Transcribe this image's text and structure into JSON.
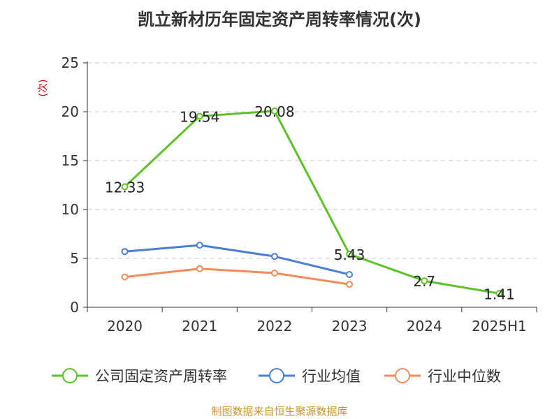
{
  "chart_data": {
    "type": "line",
    "title": "凯立新材历年固定资产周转率情况(次)",
    "ylabel": "(次)",
    "xlabel": "",
    "categories": [
      "2020",
      "2021",
      "2022",
      "2023",
      "2024",
      "2025H1"
    ],
    "ylim": [
      0,
      25
    ],
    "yticks": [
      0,
      5,
      10,
      15,
      20,
      25
    ],
    "grid": true,
    "legend_position": "bottom",
    "series": [
      {
        "name": "公司固定资产周转率",
        "values": [
          12.33,
          19.54,
          20.08,
          5.43,
          2.7,
          1.41
        ],
        "labels": [
          "12.33",
          "19.54",
          "20.08",
          "5.43",
          "2.7",
          "1.41"
        ],
        "color": "#5cc327"
      },
      {
        "name": "行业均值",
        "values": [
          5.7,
          6.35,
          5.2,
          3.35,
          null,
          null
        ],
        "color": "#4a7fd4"
      },
      {
        "name": "行业中位数",
        "values": [
          3.1,
          3.95,
          3.5,
          2.35,
          null,
          null
        ],
        "color": "#f28c5a"
      }
    ]
  },
  "source_text": "制图数据来自恒生聚源数据库"
}
